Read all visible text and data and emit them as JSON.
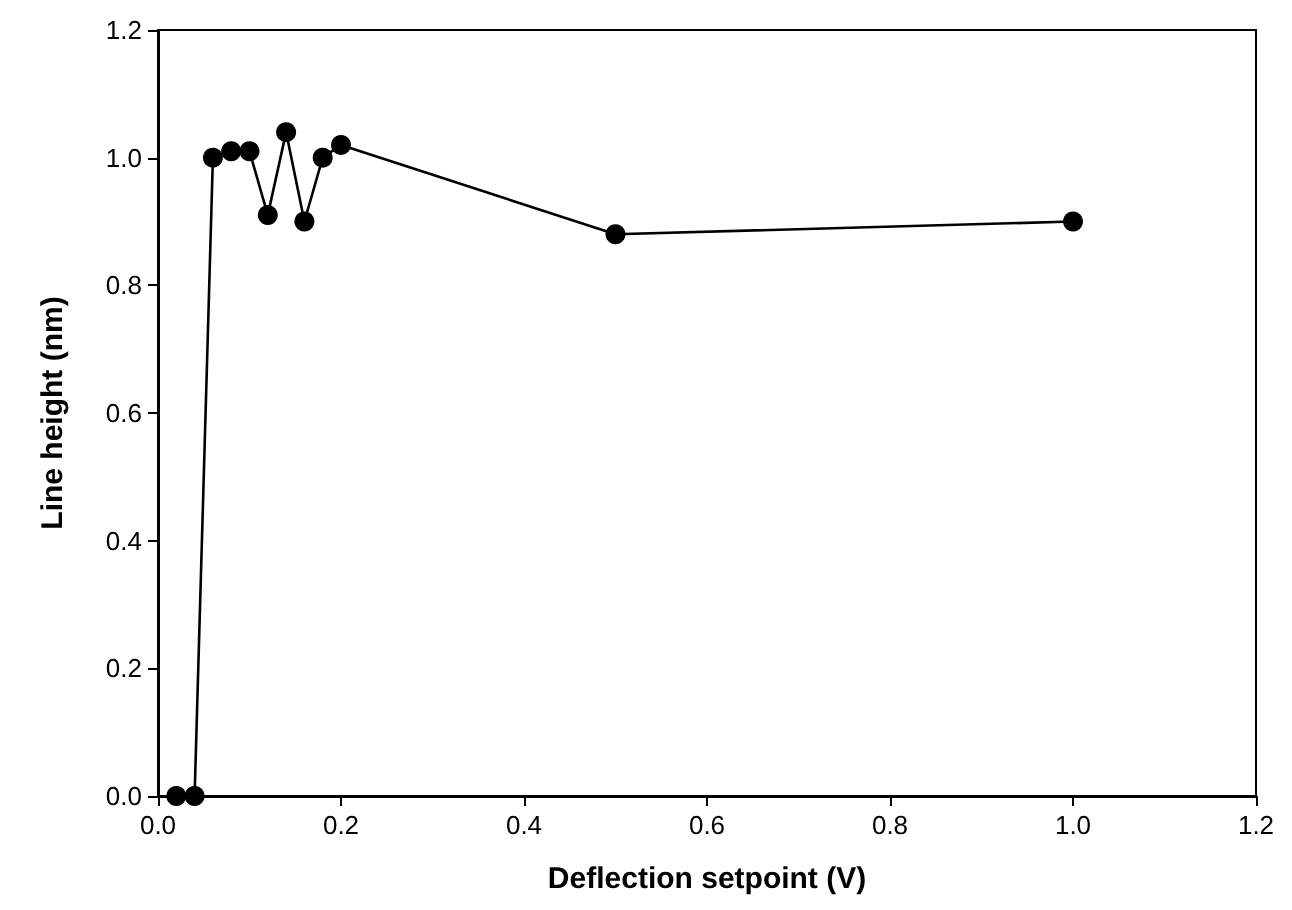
{
  "chart_data": {
    "type": "line",
    "xlabel": "Deflection setpoint (V)",
    "ylabel": "Line height (nm)",
    "x": [
      0.02,
      0.04,
      0.06,
      0.08,
      0.1,
      0.12,
      0.14,
      0.16,
      0.18,
      0.2,
      0.5,
      1.0
    ],
    "series": [
      {
        "color": "#000000",
        "values": [
          0,
          0,
          1.0,
          1.01,
          1.01,
          0.91,
          1.04,
          0.9,
          1.0,
          1.02,
          0.88,
          0.9
        ]
      }
    ],
    "xlim": [
      0,
      1.2
    ],
    "xticks": [
      {
        "value": 0,
        "label": "0.0"
      },
      0.2,
      0.4,
      0.6,
      0.8,
      {
        "value": 1,
        "label": "1.0"
      },
      1.2
    ],
    "ylim": [
      0,
      1.2
    ],
    "yticks": [
      {
        "value": 0,
        "label": "0.0"
      },
      0.2,
      0.4,
      0.6,
      0.8,
      {
        "value": 1,
        "label": "1.0"
      },
      1.2
    ],
    "marker": "circle",
    "line_style": "solid"
  }
}
